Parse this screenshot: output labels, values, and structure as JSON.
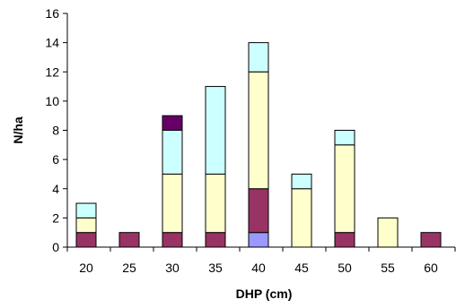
{
  "chart_data": {
    "type": "bar",
    "stacked": true,
    "xlabel": "DHP (cm)",
    "ylabel": "N/ha",
    "categories": [
      "20",
      "25",
      "30",
      "35",
      "40",
      "45",
      "50",
      "55",
      "60"
    ],
    "ylim": [
      0,
      16
    ],
    "yticks": [
      0,
      2,
      4,
      6,
      8,
      10,
      12,
      14,
      16
    ],
    "grid": false,
    "legend": "none",
    "series": [
      {
        "color": "#9999ff",
        "values": [
          0,
          0,
          0,
          0,
          1,
          0,
          0,
          0,
          0
        ]
      },
      {
        "color": "#993366",
        "values": [
          1,
          1,
          1,
          1,
          3,
          0,
          1,
          0,
          1
        ]
      },
      {
        "color": "#ffffcc",
        "values": [
          1,
          0,
          4,
          4,
          8,
          4,
          6,
          2,
          0
        ]
      },
      {
        "color": "#ccffff",
        "values": [
          1,
          0,
          3,
          6,
          2,
          1,
          1,
          0,
          0
        ]
      },
      {
        "color": "#660066",
        "values": [
          0,
          0,
          1,
          0,
          0,
          0,
          0,
          0,
          0
        ]
      }
    ]
  }
}
